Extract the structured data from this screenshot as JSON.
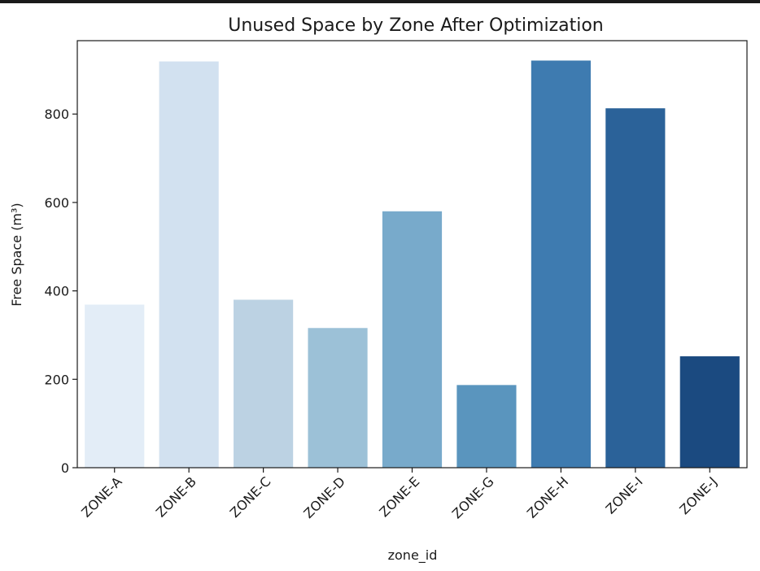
{
  "chart_data": {
    "type": "bar",
    "title": "Unused Space by Zone After Optimization",
    "xlabel": "zone_id",
    "ylabel": "Free Space (m³)",
    "categories": [
      "ZONE-A",
      "ZONE-B",
      "ZONE-C",
      "ZONE-D",
      "ZONE-E",
      "ZONE-G",
      "ZONE-H",
      "ZONE-I",
      "ZONE-J"
    ],
    "values": [
      369,
      919,
      380,
      316,
      580,
      187,
      921,
      813,
      252
    ],
    "colors": [
      "#e3edf7",
      "#d2e1f0",
      "#bcd2e3",
      "#9cc1d7",
      "#78aacb",
      "#5a95be",
      "#3e7bb0",
      "#2b6299",
      "#1b4a80"
    ],
    "yticks": [
      0,
      200,
      400,
      600,
      800
    ],
    "ylim": [
      0,
      966
    ],
    "grid": false
  }
}
